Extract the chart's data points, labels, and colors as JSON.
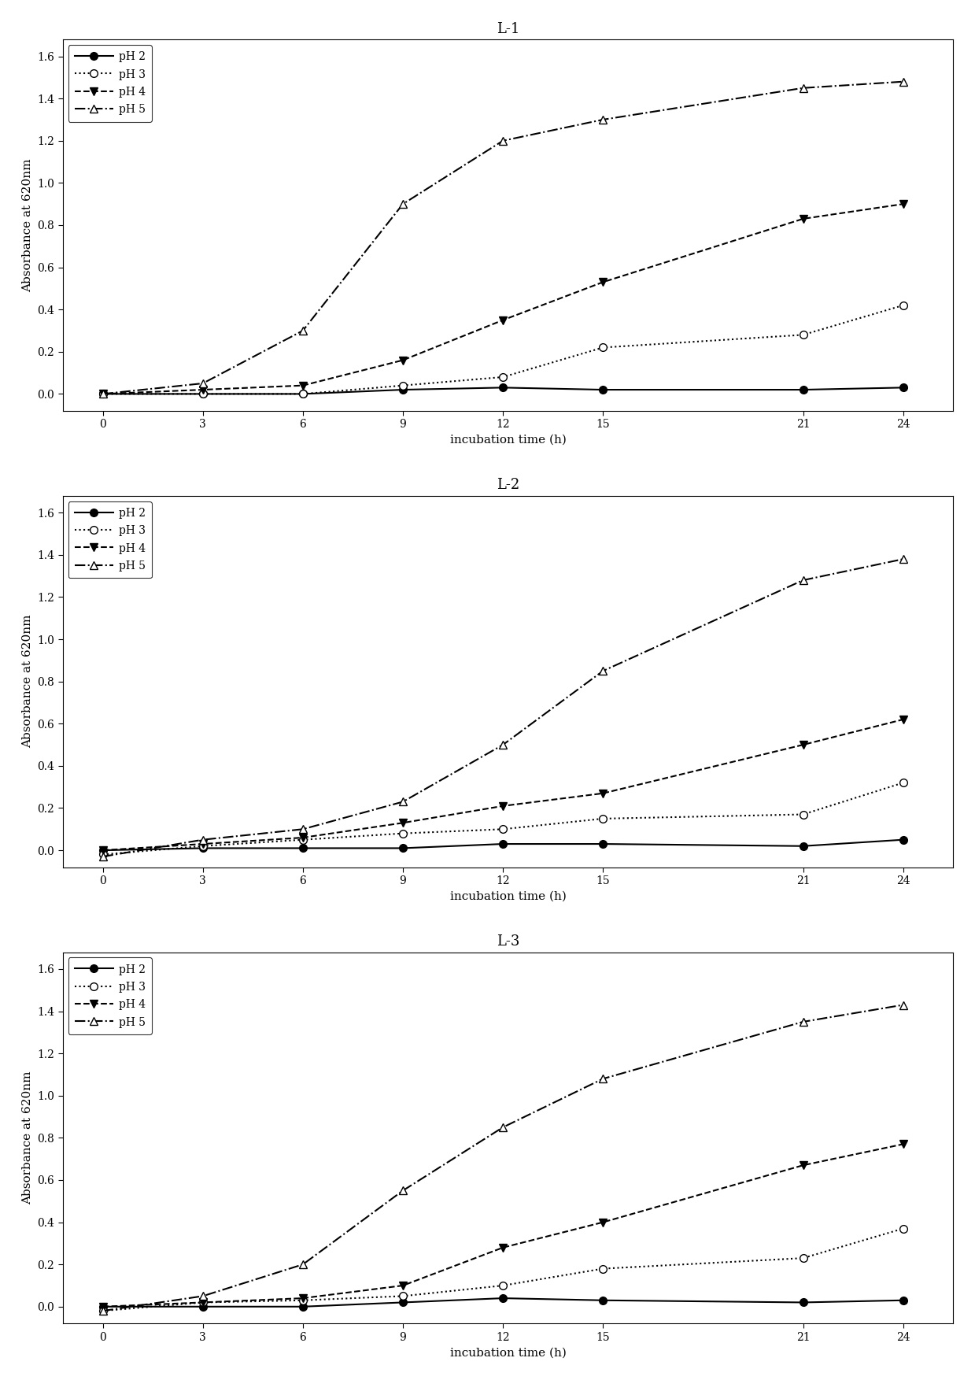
{
  "subplots": [
    {
      "title": "L-1",
      "x": [
        0,
        3,
        6,
        9,
        12,
        15,
        21,
        24
      ],
      "pH2": [
        0.0,
        0.0,
        0.0,
        0.02,
        0.03,
        0.02,
        0.02,
        0.03
      ],
      "pH3": [
        0.0,
        0.0,
        0.0,
        0.04,
        0.08,
        0.22,
        0.28,
        0.42
      ],
      "pH4": [
        0.0,
        0.02,
        0.04,
        0.16,
        0.35,
        0.53,
        0.83,
        0.9
      ],
      "pH5": [
        0.0,
        0.05,
        0.3,
        0.9,
        1.2,
        1.3,
        1.45,
        1.48
      ]
    },
    {
      "title": "L-2",
      "x": [
        0,
        3,
        6,
        9,
        12,
        15,
        21,
        24
      ],
      "pH2": [
        0.0,
        0.01,
        0.01,
        0.01,
        0.03,
        0.03,
        0.02,
        0.05
      ],
      "pH3": [
        -0.02,
        0.02,
        0.05,
        0.08,
        0.1,
        0.15,
        0.17,
        0.32
      ],
      "pH4": [
        0.0,
        0.03,
        0.06,
        0.13,
        0.21,
        0.27,
        0.5,
        0.62
      ],
      "pH5": [
        -0.03,
        0.05,
        0.1,
        0.23,
        0.5,
        0.85,
        1.28,
        1.38
      ]
    },
    {
      "title": "L-3",
      "x": [
        0,
        3,
        6,
        9,
        12,
        15,
        21,
        24
      ],
      "pH2": [
        0.0,
        0.0,
        0.0,
        0.02,
        0.04,
        0.03,
        0.02,
        0.03
      ],
      "pH3": [
        -0.02,
        0.02,
        0.03,
        0.05,
        0.1,
        0.18,
        0.23,
        0.37
      ],
      "pH4": [
        0.0,
        0.02,
        0.04,
        0.1,
        0.28,
        0.4,
        0.67,
        0.77
      ],
      "pH5": [
        -0.02,
        0.05,
        0.2,
        0.55,
        0.85,
        1.08,
        1.35,
        1.43
      ]
    }
  ],
  "x_ticks": [
    0,
    3,
    6,
    9,
    12,
    15,
    21,
    24
  ],
  "ylim": [
    -0.08,
    1.68
  ],
  "yticks": [
    0.0,
    0.2,
    0.4,
    0.6,
    0.8,
    1.0,
    1.2,
    1.4,
    1.6
  ],
  "xlabel": "incubation time (h)",
  "ylabel": "Absorbance at 620nm",
  "legend_labels": [
    "pH 2",
    "pH 3",
    "pH 4",
    "pH 5"
  ],
  "ph_keys": [
    "pH2",
    "pH3",
    "pH4",
    "pH5"
  ],
  "line_styles": [
    "-",
    ":",
    "--",
    "-."
  ],
  "markers": [
    "o",
    "o",
    "v",
    "^"
  ],
  "marker_fills": [
    "black",
    "white",
    "black",
    "white"
  ],
  "background_color": "#ffffff",
  "font_family": "serif",
  "title_fontsize": 13,
  "label_fontsize": 11,
  "tick_fontsize": 10,
  "legend_fontsize": 10,
  "linewidth": 1.5,
  "markersize": 7,
  "figsize": [
    12.39,
    17.53
  ],
  "dpi": 100
}
